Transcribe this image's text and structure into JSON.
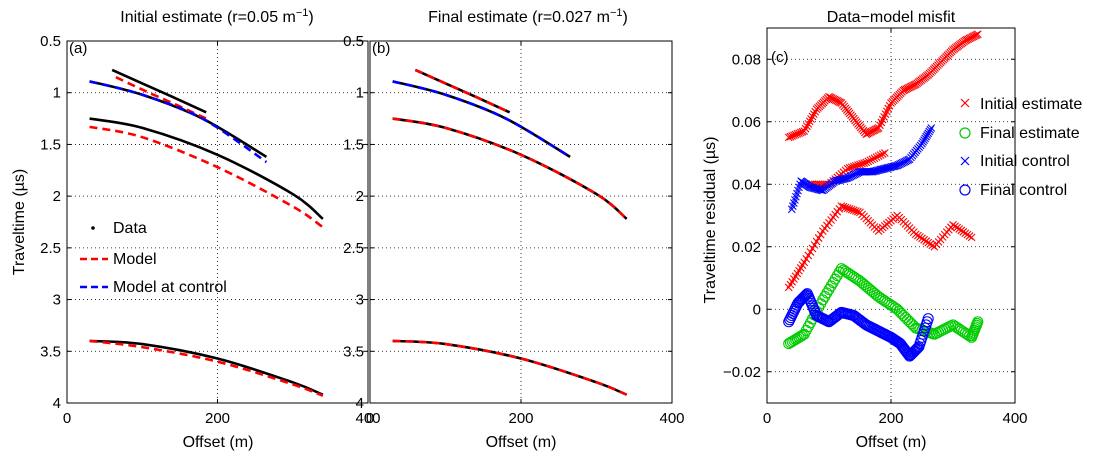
{
  "figure": {
    "panels": [
      {
        "tag": "(a)",
        "title": "Initial estimate (r=0.05 m",
        "title_sup": "−1",
        "title_end": ")",
        "xlabel": "Offset (m)",
        "ylabel": "Traveltime (µs)"
      },
      {
        "tag": "(b)",
        "title": "Final estimate (r=0.027 m",
        "title_sup": "−1",
        "title_end": ")",
        "xlabel": "Offset (m)",
        "ylabel": "Traveltime (µs)"
      },
      {
        "tag": "(c)",
        "title": "Data−model misfit",
        "title_sup": "",
        "title_end": "",
        "xlabel": "Offset (m)",
        "ylabel": "Traveltime residual (µs)"
      }
    ],
    "legend_a": [
      "Data",
      "Model",
      "Model at control"
    ],
    "legend_c": [
      "Initial estimate",
      "Final estimate",
      "Initial control",
      "Final control"
    ]
  },
  "colors": {
    "data": "#000000",
    "model": "#ff0000",
    "control": "#0000ff",
    "final": "#00cc00"
  },
  "chart_data": [
    {
      "type": "line",
      "panel": "a",
      "title": "Initial estimate (r=0.05 m−1)",
      "xlabel": "Offset (m)",
      "ylabel": "Traveltime (µs)",
      "xlim": [
        0,
        400
      ],
      "ylim": [
        0.5,
        4
      ],
      "y_reversed": true,
      "xticks": [
        0,
        200,
        400
      ],
      "yticks": [
        0.5,
        1,
        1.5,
        2,
        2.5,
        3,
        3.5,
        4
      ],
      "grid": true,
      "legend_position": "middle-left",
      "series": [
        {
          "name": "Data",
          "style": "black-solid",
          "x": [
            60,
            100,
            140,
            185
          ],
          "y": [
            0.78,
            0.91,
            1.04,
            1.19
          ]
        },
        {
          "name": "Data",
          "style": "black-solid",
          "x": [
            30,
            100,
            180,
            265
          ],
          "y": [
            0.89,
            1.02,
            1.25,
            1.62
          ]
        },
        {
          "name": "Data",
          "style": "black-solid",
          "x": [
            30,
            100,
            200,
            300,
            340
          ],
          "y": [
            1.25,
            1.34,
            1.6,
            1.98,
            2.22
          ]
        },
        {
          "name": "Data",
          "style": "black-solid",
          "x": [
            30,
            100,
            200,
            300,
            340
          ],
          "y": [
            3.4,
            3.43,
            3.57,
            3.8,
            3.92
          ]
        },
        {
          "name": "Model",
          "style": "red-dashed",
          "x": [
            65,
            100,
            140,
            185
          ],
          "y": [
            0.85,
            0.97,
            1.1,
            1.25
          ]
        },
        {
          "name": "Model",
          "style": "red-dashed",
          "x": [
            30,
            100,
            200,
            300,
            340
          ],
          "y": [
            1.33,
            1.43,
            1.72,
            2.1,
            2.3
          ]
        },
        {
          "name": "Model",
          "style": "red-dashed",
          "x": [
            30,
            100,
            200,
            300,
            340
          ],
          "y": [
            3.4,
            3.46,
            3.6,
            3.82,
            3.93
          ]
        },
        {
          "name": "Model at control",
          "style": "blue-dashed",
          "x": [
            30,
            100,
            180,
            265
          ],
          "y": [
            0.89,
            1.02,
            1.25,
            1.67
          ]
        }
      ]
    },
    {
      "type": "line",
      "panel": "b",
      "title": "Final estimate (r=0.027 m−1)",
      "xlabel": "Offset (m)",
      "ylabel": "Traveltime (µs)",
      "xlim": [
        0,
        400
      ],
      "ylim": [
        0.5,
        4
      ],
      "y_reversed": true,
      "xticks": [
        0,
        200,
        400
      ],
      "yticks": [
        0.5,
        1,
        1.5,
        2,
        2.5,
        3,
        3.5,
        4
      ],
      "grid": true,
      "series": [
        {
          "name": "Data",
          "style": "black-solid",
          "x": [
            60,
            100,
            140,
            185
          ],
          "y": [
            0.78,
            0.91,
            1.04,
            1.19
          ]
        },
        {
          "name": "Data",
          "style": "black-solid",
          "x": [
            30,
            100,
            180,
            265
          ],
          "y": [
            0.89,
            1.02,
            1.25,
            1.62
          ]
        },
        {
          "name": "Data",
          "style": "black-solid",
          "x": [
            30,
            100,
            200,
            300,
            340
          ],
          "y": [
            1.25,
            1.34,
            1.6,
            1.98,
            2.22
          ]
        },
        {
          "name": "Data",
          "style": "black-solid",
          "x": [
            30,
            100,
            200,
            300,
            340
          ],
          "y": [
            3.4,
            3.43,
            3.57,
            3.8,
            3.92
          ]
        },
        {
          "name": "Model",
          "style": "red-dashed",
          "x": [
            60,
            100,
            140,
            185
          ],
          "y": [
            0.78,
            0.91,
            1.04,
            1.19
          ]
        },
        {
          "name": "Model",
          "style": "red-dashed",
          "x": [
            30,
            100,
            200,
            300,
            340
          ],
          "y": [
            1.25,
            1.34,
            1.6,
            1.98,
            2.22
          ]
        },
        {
          "name": "Model",
          "style": "red-dashed",
          "x": [
            30,
            100,
            200,
            300,
            340
          ],
          "y": [
            3.4,
            3.43,
            3.57,
            3.8,
            3.92
          ]
        },
        {
          "name": "Model at control",
          "style": "blue-dashed",
          "x": [
            30,
            100,
            180,
            265
          ],
          "y": [
            0.89,
            1.02,
            1.25,
            1.62
          ]
        }
      ]
    },
    {
      "type": "scatter",
      "panel": "c",
      "title": "Data−model misfit",
      "xlabel": "Offset (m)",
      "ylabel": "Traveltime residual (µs)",
      "xlim": [
        0,
        400
      ],
      "ylim": [
        -0.03,
        0.09
      ],
      "xticks": [
        0,
        200,
        400
      ],
      "yticks": [
        -0.02,
        0,
        0.02,
        0.04,
        0.06,
        0.08
      ],
      "grid": true,
      "legend_position": "right",
      "series": [
        {
          "name": "Initial estimate",
          "marker": "x",
          "color": "red",
          "x": [
            35,
            60,
            80,
            100,
            120,
            140,
            160,
            180,
            200,
            220,
            240,
            260,
            280,
            300,
            320,
            340
          ],
          "y": [
            0.055,
            0.057,
            0.064,
            0.068,
            0.066,
            0.061,
            0.056,
            0.058,
            0.066,
            0.07,
            0.072,
            0.075,
            0.079,
            0.083,
            0.086,
            0.088
          ]
        },
        {
          "name": "Initial estimate",
          "marker": "x",
          "color": "red",
          "x": [
            35,
            60,
            90,
            120,
            150,
            180,
            210,
            240,
            270,
            300,
            330
          ],
          "y": [
            0.007,
            0.015,
            0.025,
            0.033,
            0.031,
            0.025,
            0.03,
            0.024,
            0.02,
            0.027,
            0.023
          ]
        },
        {
          "name": "Initial estimate",
          "marker": "x",
          "color": "red",
          "x": [
            70,
            100,
            130,
            160,
            190
          ],
          "y": [
            0.04,
            0.04,
            0.045,
            0.047,
            0.05
          ]
        },
        {
          "name": "Final estimate",
          "marker": "o",
          "color": "green",
          "x": [
            35,
            60,
            90,
            120,
            150,
            180,
            210,
            240,
            270,
            300,
            330,
            340
          ],
          "y": [
            -0.011,
            -0.008,
            0.003,
            0.013,
            0.009,
            0.004,
            0.0,
            -0.006,
            -0.008,
            -0.005,
            -0.009,
            -0.004
          ]
        },
        {
          "name": "Initial control",
          "marker": "x",
          "color": "blue",
          "x": [
            40,
            55,
            70,
            90,
            110,
            130,
            150,
            170,
            190,
            210,
            230,
            250,
            265
          ],
          "y": [
            0.032,
            0.041,
            0.039,
            0.038,
            0.041,
            0.042,
            0.044,
            0.044,
            0.045,
            0.046,
            0.048,
            0.053,
            0.058
          ]
        },
        {
          "name": "Final control",
          "marker": "o",
          "color": "blue",
          "x": [
            35,
            50,
            65,
            80,
            100,
            120,
            140,
            160,
            180,
            200,
            215,
            230,
            245,
            260
          ],
          "y": [
            -0.004,
            0.002,
            0.005,
            -0.002,
            -0.004,
            -0.001,
            -0.002,
            -0.005,
            -0.007,
            -0.009,
            -0.011,
            -0.015,
            -0.012,
            -0.003
          ]
        }
      ]
    }
  ]
}
